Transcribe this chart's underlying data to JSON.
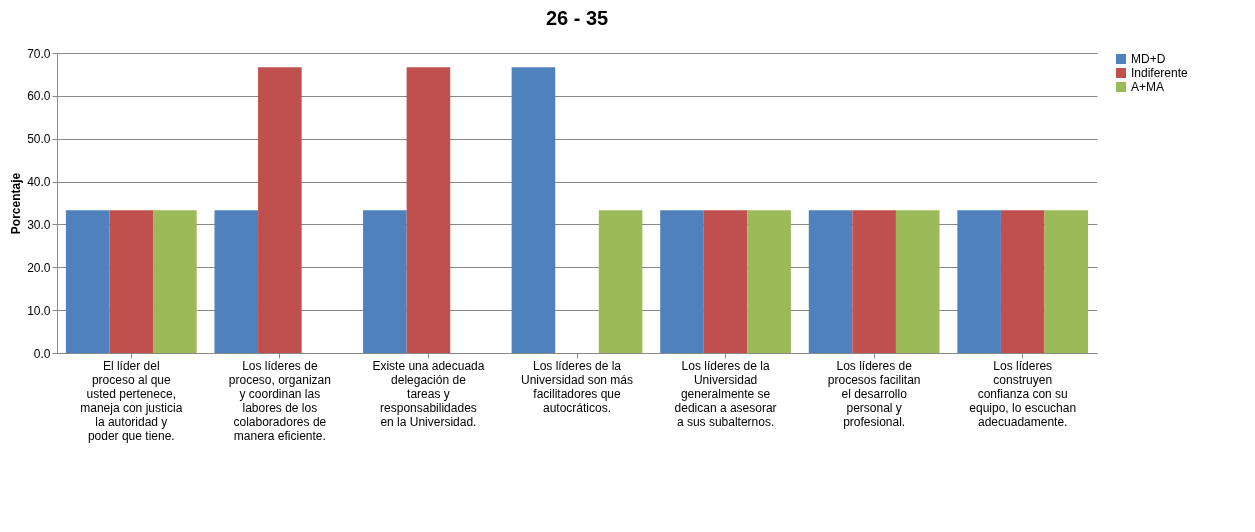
{
  "chart_data": {
    "type": "bar",
    "title": "26 - 35",
    "ylabel": "Porcentaje",
    "categories": [
      "El líder del proceso al que usted pertenece, maneja con justicia la autoridad y poder que tiene.",
      "Los líderes de proceso, organizan y coordinan las labores de los colaboradores de manera eficiente.",
      "Existe una adecuada delegación de tareas y responsabilidades en la Universidad.",
      "Los líderes de la Universidad son más facilitadores que autocráticos.",
      "Los líderes de la Universidad generalmente se dedican a asesorar a sus subalternos.",
      "Los líderes de procesos facilitan el desarrollo personal y profesional.",
      "Los líderes construyen confianza con su equipo, lo escuchan adecuadamente."
    ],
    "series": [
      {
        "name": "MD+D",
        "color": "#4f81bd",
        "values": [
          33.3,
          33.3,
          33.3,
          66.7,
          33.3,
          33.3,
          33.3
        ]
      },
      {
        "name": "Indiferente",
        "color": "#c0504d",
        "values": [
          33.3,
          66.7,
          66.7,
          0,
          33.3,
          33.3,
          33.3
        ]
      },
      {
        "name": "A+MA",
        "color": "#9bbb59",
        "values": [
          33.3,
          0,
          0,
          33.3,
          33.3,
          33.3,
          33.3
        ]
      }
    ],
    "ylim": [
      0,
      70
    ],
    "yticks": [
      {
        "value": 0,
        "label": "0.0"
      },
      {
        "value": 10,
        "label": "10.0"
      },
      {
        "value": 20,
        "label": "20.0"
      },
      {
        "value": 30,
        "label": "30.0"
      },
      {
        "value": 40,
        "label": "40.0"
      },
      {
        "value": 50,
        "label": "50.0"
      },
      {
        "value": 60,
        "label": "60.0"
      },
      {
        "value": 70,
        "label": "70.0"
      }
    ],
    "grid": "y",
    "legend": "right"
  }
}
